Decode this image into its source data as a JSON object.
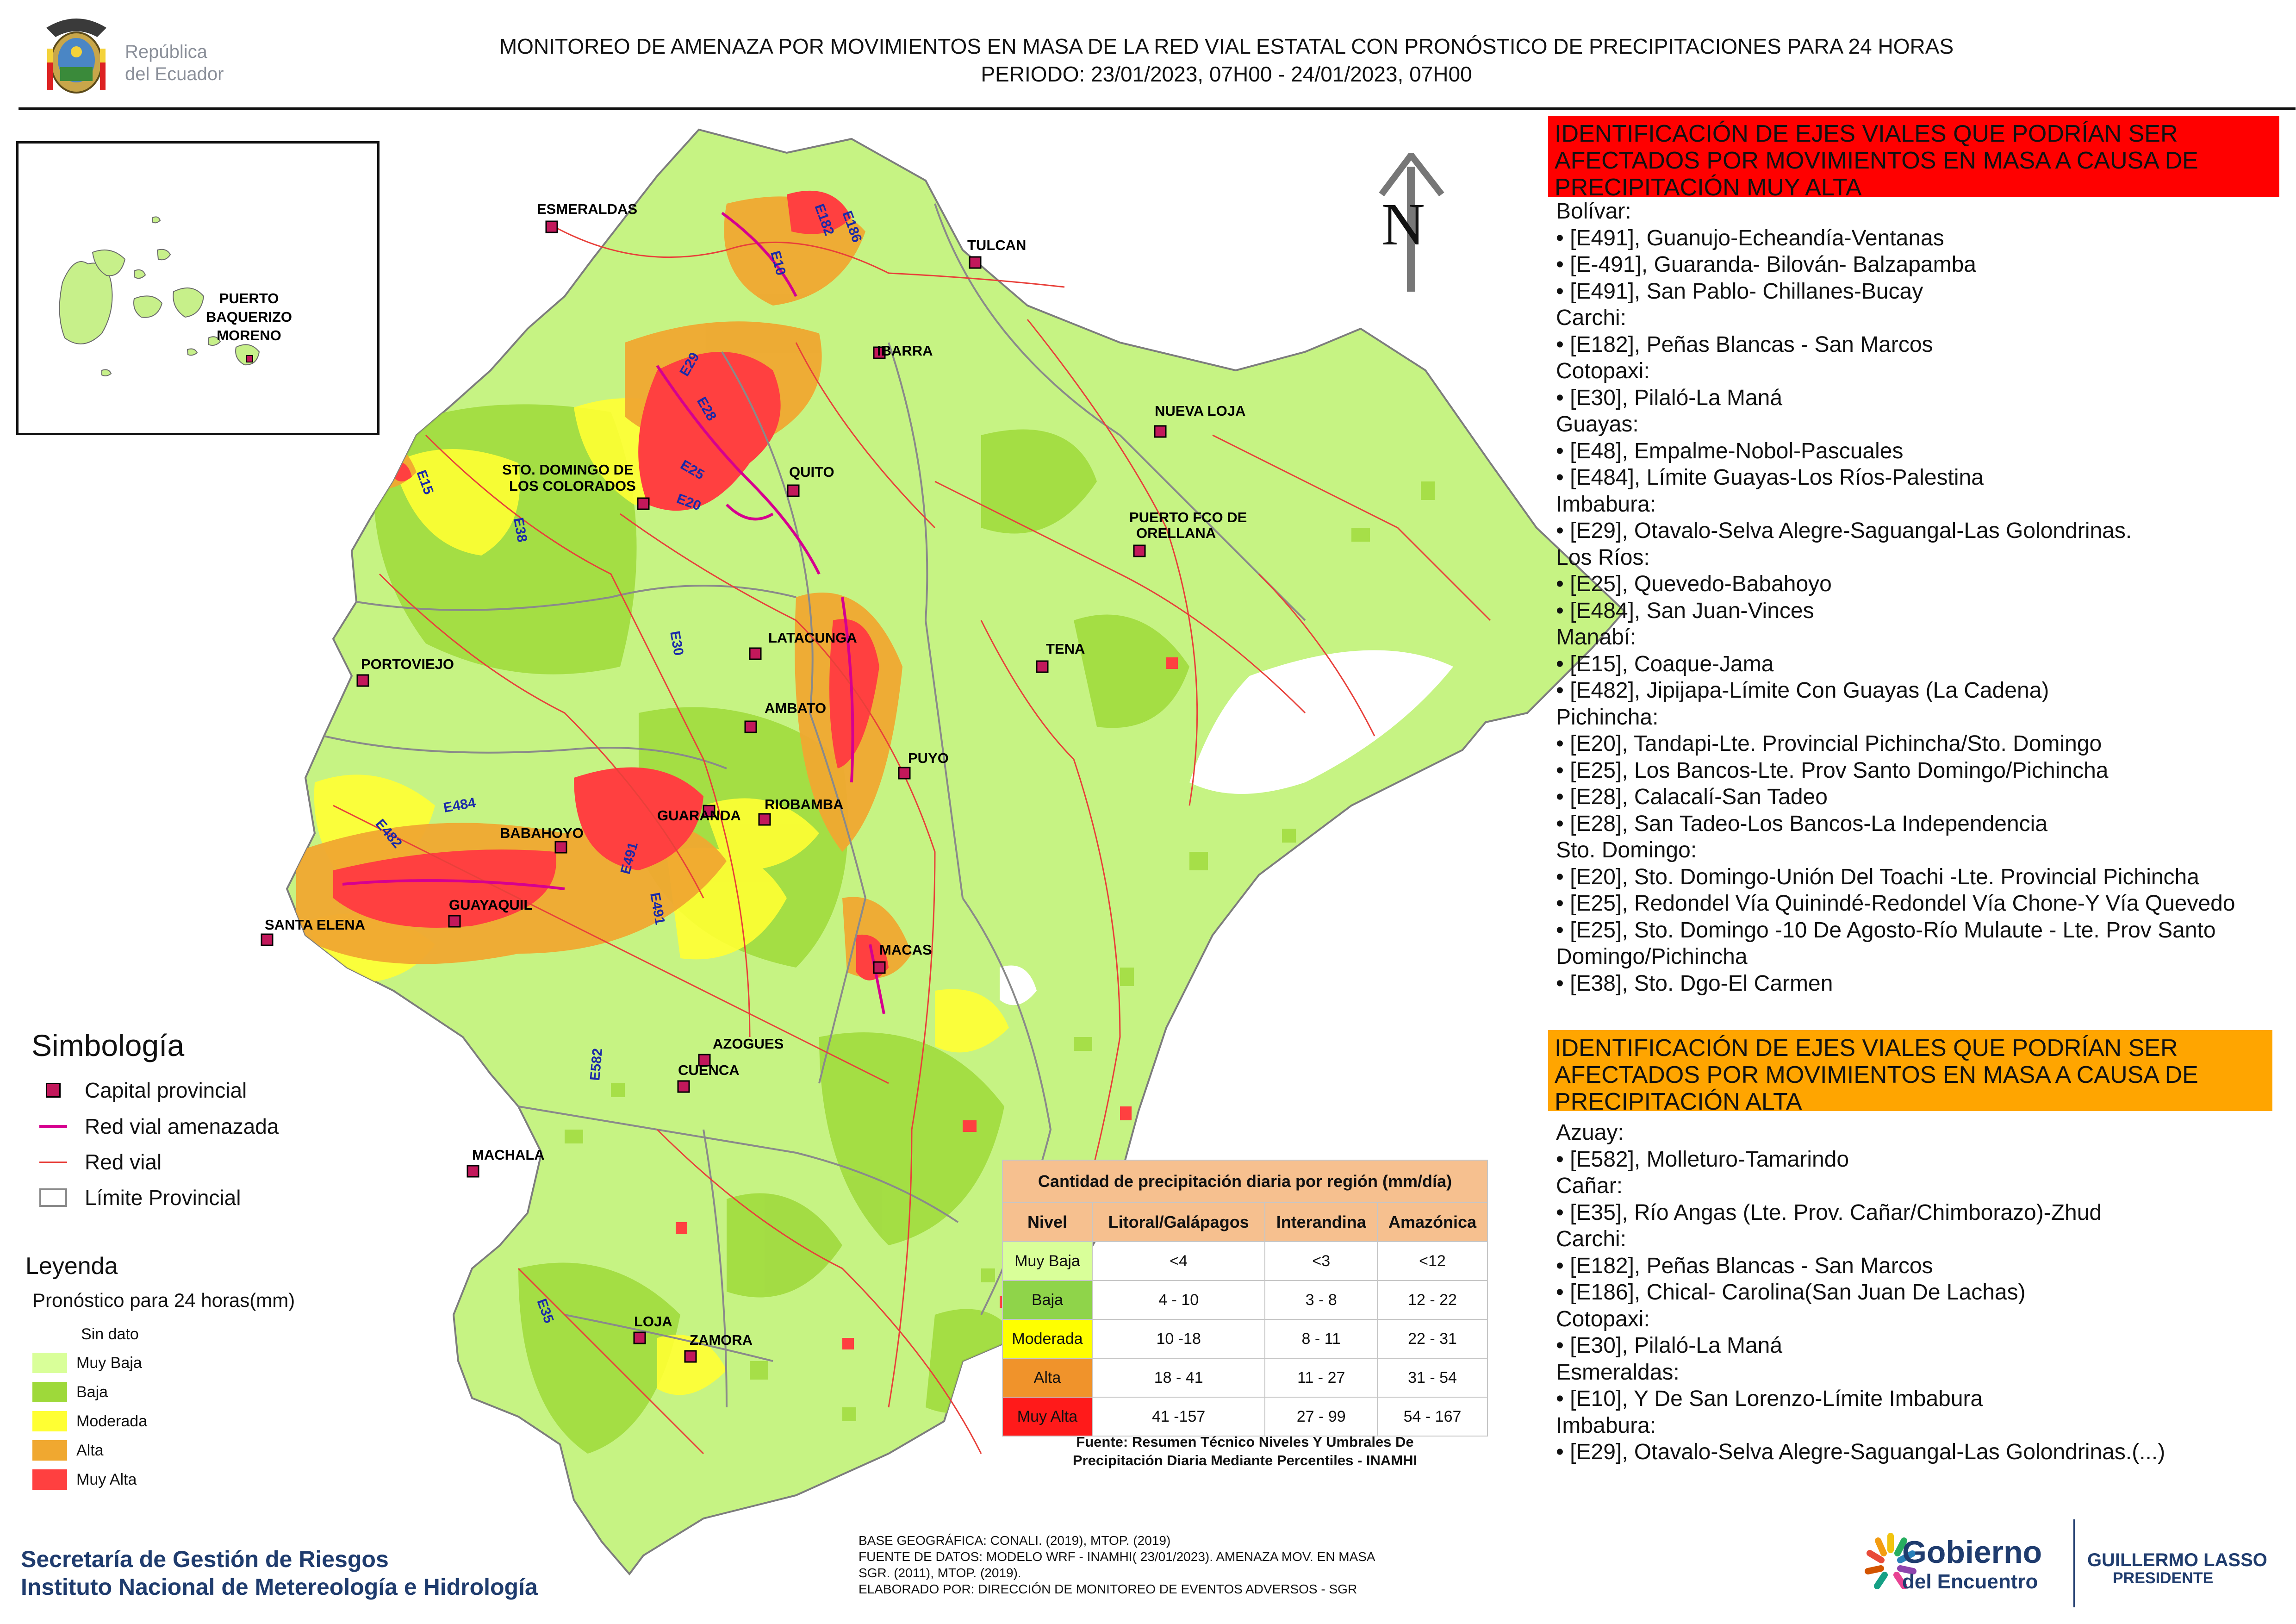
{
  "header": {
    "logo_text_line1": "República",
    "logo_text_line2": "del Ecuador",
    "title_line1": "MONITOREO DE AMENAZA POR MOVIMIENTOS EN MASA DE LA RED VIAL  ESTATAL  CON PRONÓSTICO  DE  PRECIPITACIONES PARA 24 HORAS",
    "title_line2": "PERIODO: 23/01/2023, 07H00 - 24/01/2023, 07H00"
  },
  "map": {
    "north_letter": "N",
    "inset_city": [
      "PUERTO",
      "BAQUERIZO",
      "MORENO"
    ],
    "cities": {
      "esmeraldas": "ESMERALDAS",
      "tulcan": "TULCAN",
      "ibarra": "IBARRA",
      "nueva_loja": "NUEVA LOJA",
      "sto_domingo_1": "STO. DOMINGO DE",
      "sto_domingo_2": "LOS COLORADOS",
      "quito": "QUITO",
      "pto_orellana_1": "PUERTO FCO DE",
      "pto_orellana_2": "ORELLANA",
      "latacunga": "LATACUNGA",
      "tena": "TENA",
      "portoviejo": "PORTOVIEJO",
      "ambato": "AMBATO",
      "puyo": "PUYO",
      "guaranda": "GUARANDA",
      "riobamba": "RIOBAMBA",
      "babahoyo": "BABAHOYO",
      "santa_elena": "SANTA ELENA",
      "guayaquil": "GUAYAQUIL",
      "macas": "MACAS",
      "azogues": "AZOGUES",
      "cuenca": "CUENCA",
      "machala": "MACHALA",
      "loja": "LOJA",
      "zamora": "ZAMORA"
    },
    "roads": {
      "e182": "E182",
      "e186": "E186",
      "e10": "E10",
      "e29": "E29",
      "e28": "E28",
      "e25": "E25",
      "e20": "E20",
      "e15": "E15",
      "e38": "E38",
      "e30": "E30",
      "e484": "E484",
      "e482": "E482",
      "e491a": "E491",
      "e491b": "E491",
      "e582": "E582",
      "e35": "E35"
    }
  },
  "panel_red": {
    "heading": "IDENTIFICACIÓN DE EJES VIALES QUE PODRÍAN SER AFECTADOS POR MOVIMIENTOS EN MASA A CAUSA DE PRECIPITACIÓN MUY ALTA",
    "lines": [
      "Bolívar:",
      "• [E491], Guanujo-Echeandía-Ventanas",
      "• [E-491], Guaranda- Bilován- Balzapamba",
      "• [E491], San Pablo- Chillanes-Bucay",
      "Carchi:",
      "• [E182], Peñas Blancas - San Marcos",
      "Cotopaxi:",
      "• [E30], Pilaló-La Maná",
      "Guayas:",
      "• [E48], Empalme-Nobol-Pascuales",
      "• [E484], Límite Guayas-Los Ríos-Palestina",
      "Imbabura:",
      "• [E29], Otavalo-Selva Alegre-Saguangal-Las Golondrinas.",
      "Los Ríos:",
      "• [E25], Quevedo-Babahoyo",
      "• [E484], San Juan-Vinces",
      "Manabí:",
      "• [E15], Coaque-Jama",
      "• [E482], Jipijapa-Límite Con Guayas (La Cadena)",
      "Pichincha:",
      "• [E20], Tandapi-Lte. Provincial Pichincha/Sto. Domingo",
      "• [E25], Los Bancos-Lte. Prov Santo Domingo/Pichincha",
      "• [E28], Calacalí-San Tadeo",
      "• [E28], San Tadeo-Los Bancos-La Independencia",
      "Sto. Domingo:",
      "• [E20], Sto. Domingo-Unión Del Toachi -Lte. Provincial Pichincha",
      "• [E25], Redondel Vía Quinindé-Redondel Vía Chone-Y Vía Quevedo",
      "• [E25], Sto. Domingo -10 De Agosto-Río Mulaute - Lte. Prov Santo",
      "Domingo/Pichincha",
      "• [E38], Sto. Dgo-El Carmen"
    ]
  },
  "panel_orange": {
    "heading": "IDENTIFICACIÓN DE EJES VIALES QUE PODRÍAN SER AFECTADOS POR MOVIMIENTOS EN MASA A CAUSA DE PRECIPITACIÓN  ALTA",
    "lines": [
      "Azuay:",
      "• [E582], Molleturo-Tamarindo",
      "Cañar:",
      "• [E35], Río Angas (Lte. Prov. Cañar/Chimborazo)-Zhud",
      "Carchi:",
      "• [E182], Peñas Blancas - San Marcos",
      "• [E186], Chical- Carolina(San Juan De Lachas)",
      "Cotopaxi:",
      "• [E30], Pilaló-La Maná",
      "Esmeraldas:",
      "• [E10], Y De San Lorenzo-Límite Imbabura",
      "Imbabura:",
      "• [E29], Otavalo-Selva Alegre-Saguangal-Las Golondrinas.(...)"
    ]
  },
  "symbology": {
    "title": "Simbología",
    "items": [
      {
        "label": "Capital provincial",
        "icon": "capital-marker-icon"
      },
      {
        "label": "Red vial amenazada",
        "icon": "threatened-road-line-icon",
        "color": "#d6008f"
      },
      {
        "label": "Red vial",
        "icon": "road-line-icon",
        "color": "#e8403a"
      },
      {
        "label": "Límite Provincial",
        "icon": "province-boundary-icon"
      }
    ]
  },
  "legend": {
    "title": "Leyenda",
    "subtitle": "Pronóstico para 24 horas(mm)",
    "items": [
      {
        "label": "Sin dato",
        "color": "#ffffff"
      },
      {
        "label": " Muy Baja",
        "color": "#d9ff99"
      },
      {
        "label": "Baja",
        "color": "#9ed93a"
      },
      {
        "label": "Moderada",
        "color": "#ffff33"
      },
      {
        "label": "Alta",
        "color": "#f0a830"
      },
      {
        "label": "Muy Alta",
        "color": "#ff4040"
      }
    ]
  },
  "precip_table": {
    "caption": "Cantidad de precipitación diaria por región (mm/día)",
    "headers": [
      "Nivel",
      "Litoral/Galápagos",
      "Interandina",
      "Amazónica"
    ],
    "rows": [
      {
        "level": "Muy Baja",
        "color": "#d9ff99",
        "values": [
          "<4",
          "<3",
          "<12"
        ]
      },
      {
        "level": "Baja",
        "color": "#8fd44a",
        "values": [
          "4 - 10",
          "3 - 8",
          "12 - 22"
        ]
      },
      {
        "level": "Moderada",
        "color": "#ffff00",
        "values": [
          "10 -18",
          "8 - 11",
          "22 - 31"
        ]
      },
      {
        "level": "Alta",
        "color": "#f0932b",
        "values": [
          "18 - 41",
          "11 - 27",
          "31 - 54"
        ]
      },
      {
        "level": "Muy Alta",
        "color": "#ff1a1a",
        "values": [
          "41 -157",
          "27 - 99",
          "54 - 167"
        ]
      }
    ],
    "source_line1": "Fuente: Resumen Técnico Niveles Y Umbrales De",
    "source_line2": "Precipitación Diaria Mediante Percentiles - INAMHI"
  },
  "footer": {
    "inst_line1": "Secretaría de Gestión de Riesgos",
    "inst_line2": "Instituto Nacional de Metereología e Hidrología",
    "credits": [
      "BASE GEOGRÁFICA: CONALI. (2019), MTOP. (2019)",
      "FUENTE DE DATOS: MODELO WRF - INAMHI( 23/01/2023).  AMENAZA MOV. EN MASA",
      "SGR. (2011), MTOP. (2019).",
      "ELABORADO POR: DIRECCIÓN DE MONITOREO DE EVENTOS ADVERSOS - SGR"
    ],
    "gob_word": "Gobierno",
    "gob_sub": "del Encuentro",
    "lasso_name": "GUILLERMO LASSO",
    "lasso_title": "PRESIDENTE"
  }
}
